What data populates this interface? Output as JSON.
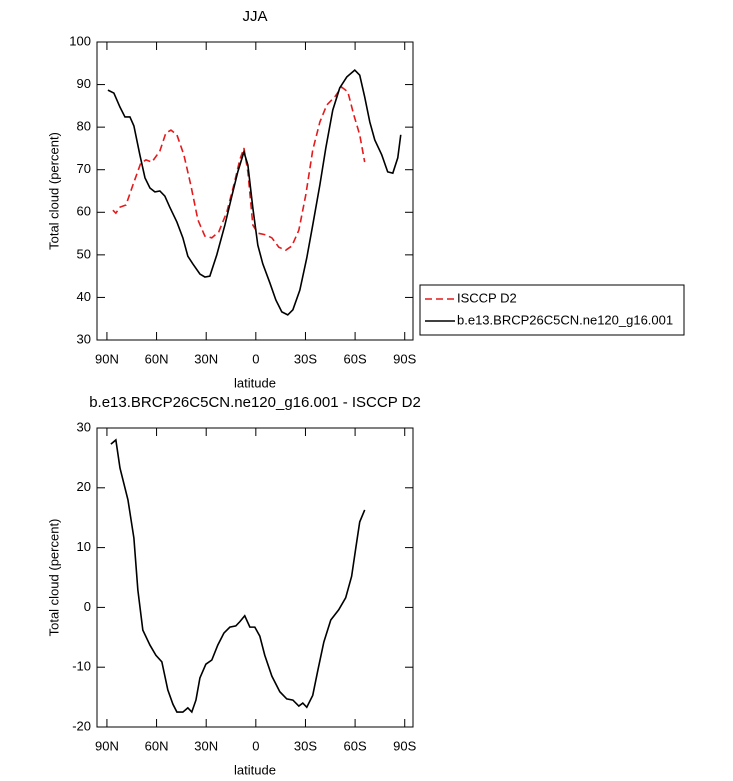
{
  "chart_data": [
    {
      "type": "line",
      "title": "JJA",
      "xlabel": "latitude",
      "ylabel": "Total cloud (percent)",
      "xlim": [
        96,
        -95
      ],
      "ylim": [
        30,
        100
      ],
      "xticks": [
        {
          "value": 90,
          "label": "90N"
        },
        {
          "value": 60,
          "label": "60N"
        },
        {
          "value": 30,
          "label": "30N"
        },
        0,
        {
          "value": -30,
          "label": "30S"
        },
        {
          "value": -60,
          "label": "60S"
        },
        {
          "value": -90,
          "label": "90S"
        }
      ],
      "yticks": [
        30,
        40,
        50,
        60,
        70,
        80,
        90,
        100
      ],
      "series": [
        {
          "name": "ISCCP D2",
          "color": "#e41a1c",
          "dash": "dashed",
          "x": [
            86.4,
            84.6,
            82.1,
            78.5,
            74.3,
            69.5,
            66.4,
            62.8,
            58.0,
            54.4,
            51.3,
            47.7,
            43.5,
            39.3,
            35.0,
            30.8,
            26.6,
            22.4,
            17.5,
            13.3,
            9.7,
            7.2,
            4.8,
            1.8,
            -1.2,
            -6.0,
            -9.7,
            -13.9,
            -18.1,
            -21.8,
            -26.0,
            -30.2,
            -34.4,
            -38.7,
            -42.9,
            -47.7,
            -51.9,
            -55.6,
            -59.2,
            -62.8,
            -65.8
          ],
          "values": [
            60.5,
            59.8,
            61.2,
            61.7,
            66.4,
            71.6,
            72.3,
            71.8,
            74.4,
            78.6,
            79.3,
            78.2,
            73.5,
            66.4,
            58.2,
            54.4,
            54.0,
            55.4,
            60.1,
            66.4,
            72.3,
            75.1,
            69.5,
            57.0,
            55.1,
            54.7,
            54.0,
            51.8,
            51.1,
            52.1,
            55.8,
            64.1,
            74.6,
            81.2,
            85.2,
            87.1,
            89.4,
            88.3,
            82.9,
            78.2,
            71.8
          ]
        },
        {
          "name": "b.e13.BRCP26C5CN.ne120_g16.001",
          "color": "#000000",
          "dash": "solid",
          "x": [
            89.4,
            85.8,
            82.1,
            79.1,
            76.1,
            73.7,
            70.1,
            67.0,
            64.0,
            61.0,
            58.0,
            55.0,
            52.0,
            47.7,
            44.1,
            41.1,
            38.1,
            33.8,
            30.8,
            27.8,
            23.6,
            18.7,
            14.5,
            10.9,
            7.2,
            4.8,
            1.8,
            -1.2,
            -4.2,
            -8.5,
            -12.1,
            -15.7,
            -19.3,
            -22.4,
            -26.6,
            -30.8,
            -34.4,
            -38.7,
            -42.3,
            -46.5,
            -50.7,
            -55.0,
            -59.8,
            -62.8,
            -65.8,
            -68.9,
            -71.9,
            -76.1,
            -79.7,
            -82.8,
            -85.8,
            -87.6
          ],
          "values": [
            88.7,
            88.0,
            84.7,
            82.4,
            82.4,
            80.3,
            73.5,
            68.1,
            65.7,
            64.8,
            65.0,
            63.8,
            61.2,
            57.7,
            54.0,
            49.7,
            47.9,
            45.5,
            44.8,
            45.0,
            50.0,
            57.0,
            63.8,
            69.5,
            74.2,
            71.1,
            61.0,
            52.3,
            47.9,
            43.4,
            39.4,
            36.6,
            35.9,
            37.1,
            41.7,
            49.3,
            57.0,
            66.4,
            75.1,
            84.0,
            89.2,
            91.8,
            93.4,
            92.2,
            87.1,
            81.2,
            77.0,
            73.5,
            69.5,
            69.2,
            72.8,
            78.2
          ]
        }
      ]
    },
    {
      "type": "line",
      "title": "b.e13.BRCP26C5CN.ne120_g16.001 - ISCCP D2",
      "xlabel": "latitude",
      "ylabel": "Total cloud (percent)",
      "xlim": [
        96,
        -95
      ],
      "ylim": [
        -20,
        30
      ],
      "xticks": [
        {
          "value": 90,
          "label": "90N"
        },
        {
          "value": 60,
          "label": "60N"
        },
        {
          "value": 30,
          "label": "30N"
        },
        0,
        {
          "value": -30,
          "label": "30S"
        },
        {
          "value": -60,
          "label": "60S"
        },
        {
          "value": -90,
          "label": "90S"
        }
      ],
      "yticks": [
        -20,
        -10,
        0,
        10,
        20,
        30
      ],
      "series": [
        {
          "color": "#000000",
          "dash": "solid",
          "x": [
            87.6,
            84.6,
            82.1,
            77.3,
            73.7,
            71.3,
            68.3,
            64.0,
            60.4,
            56.8,
            53.2,
            50.1,
            47.7,
            44.1,
            41.1,
            38.7,
            36.2,
            33.8,
            30.2,
            26.6,
            23.0,
            19.3,
            15.7,
            12.1,
            9.7,
            6.7,
            3.6,
            0.6,
            -2.4,
            -5.4,
            -9.7,
            -14.5,
            -18.7,
            -22.4,
            -26.0,
            -28.4,
            -30.8,
            -34.4,
            -37.5,
            -41.1,
            -45.3,
            -50.1,
            -54.3,
            -57.9,
            -60.4,
            -62.8,
            -65.8
          ],
          "values": [
            27.3,
            28.0,
            23.3,
            18.0,
            11.6,
            2.9,
            -3.8,
            -6.3,
            -8.0,
            -9.1,
            -13.8,
            -16.2,
            -17.5,
            -17.5,
            -16.8,
            -17.5,
            -15.5,
            -11.8,
            -9.5,
            -8.8,
            -6.3,
            -4.3,
            -3.3,
            -3.1,
            -2.4,
            -1.4,
            -3.3,
            -3.3,
            -4.8,
            -8.0,
            -11.5,
            -14.1,
            -15.3,
            -15.5,
            -16.5,
            -16.0,
            -16.7,
            -14.7,
            -10.5,
            -5.8,
            -2.1,
            -0.4,
            1.6,
            5.2,
            9.9,
            14.3,
            16.3
          ]
        }
      ]
    }
  ]
}
